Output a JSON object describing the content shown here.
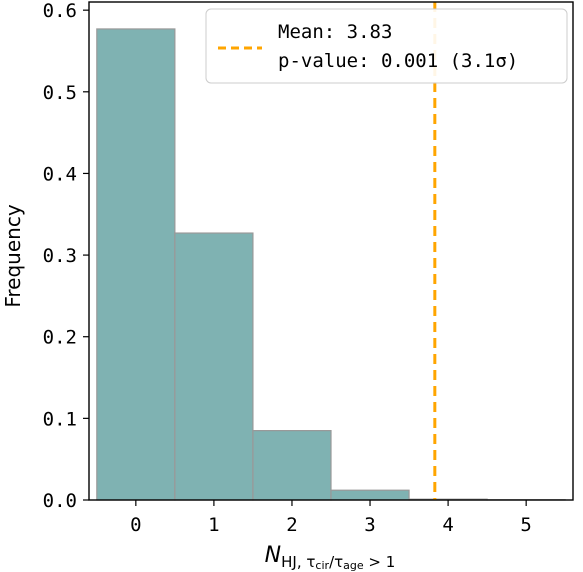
{
  "chart_data": {
    "type": "bar",
    "categories": [
      "0",
      "1",
      "2",
      "3",
      "4",
      "5"
    ],
    "values": [
      0.577,
      0.327,
      0.085,
      0.012,
      0.001,
      0.0003
    ],
    "xlabel": "N_HJ, τcir/τage > 1",
    "ylabel": "Frequency",
    "xlim": [
      -0.6,
      5.6
    ],
    "ylim": [
      0,
      0.61
    ],
    "xticks": [
      "0",
      "1",
      "2",
      "3",
      "4",
      "5"
    ],
    "yticks": [
      "0.0",
      "0.1",
      "0.2",
      "0.3",
      "0.4",
      "0.5",
      "0.6"
    ],
    "grid": false,
    "legend_position": "top-right",
    "mean_line": {
      "x": 3.83,
      "label": "Mean: 3.83",
      "style": "dashed",
      "color": "#FFA500"
    },
    "legend_entries": [
      "Mean: 3.83",
      "p-value: 0.001 (3.1σ)"
    ],
    "colors": {
      "bar_fill": "#7FB2B2",
      "bar_edge": "#999999",
      "mean_line": "#FFA500"
    }
  }
}
